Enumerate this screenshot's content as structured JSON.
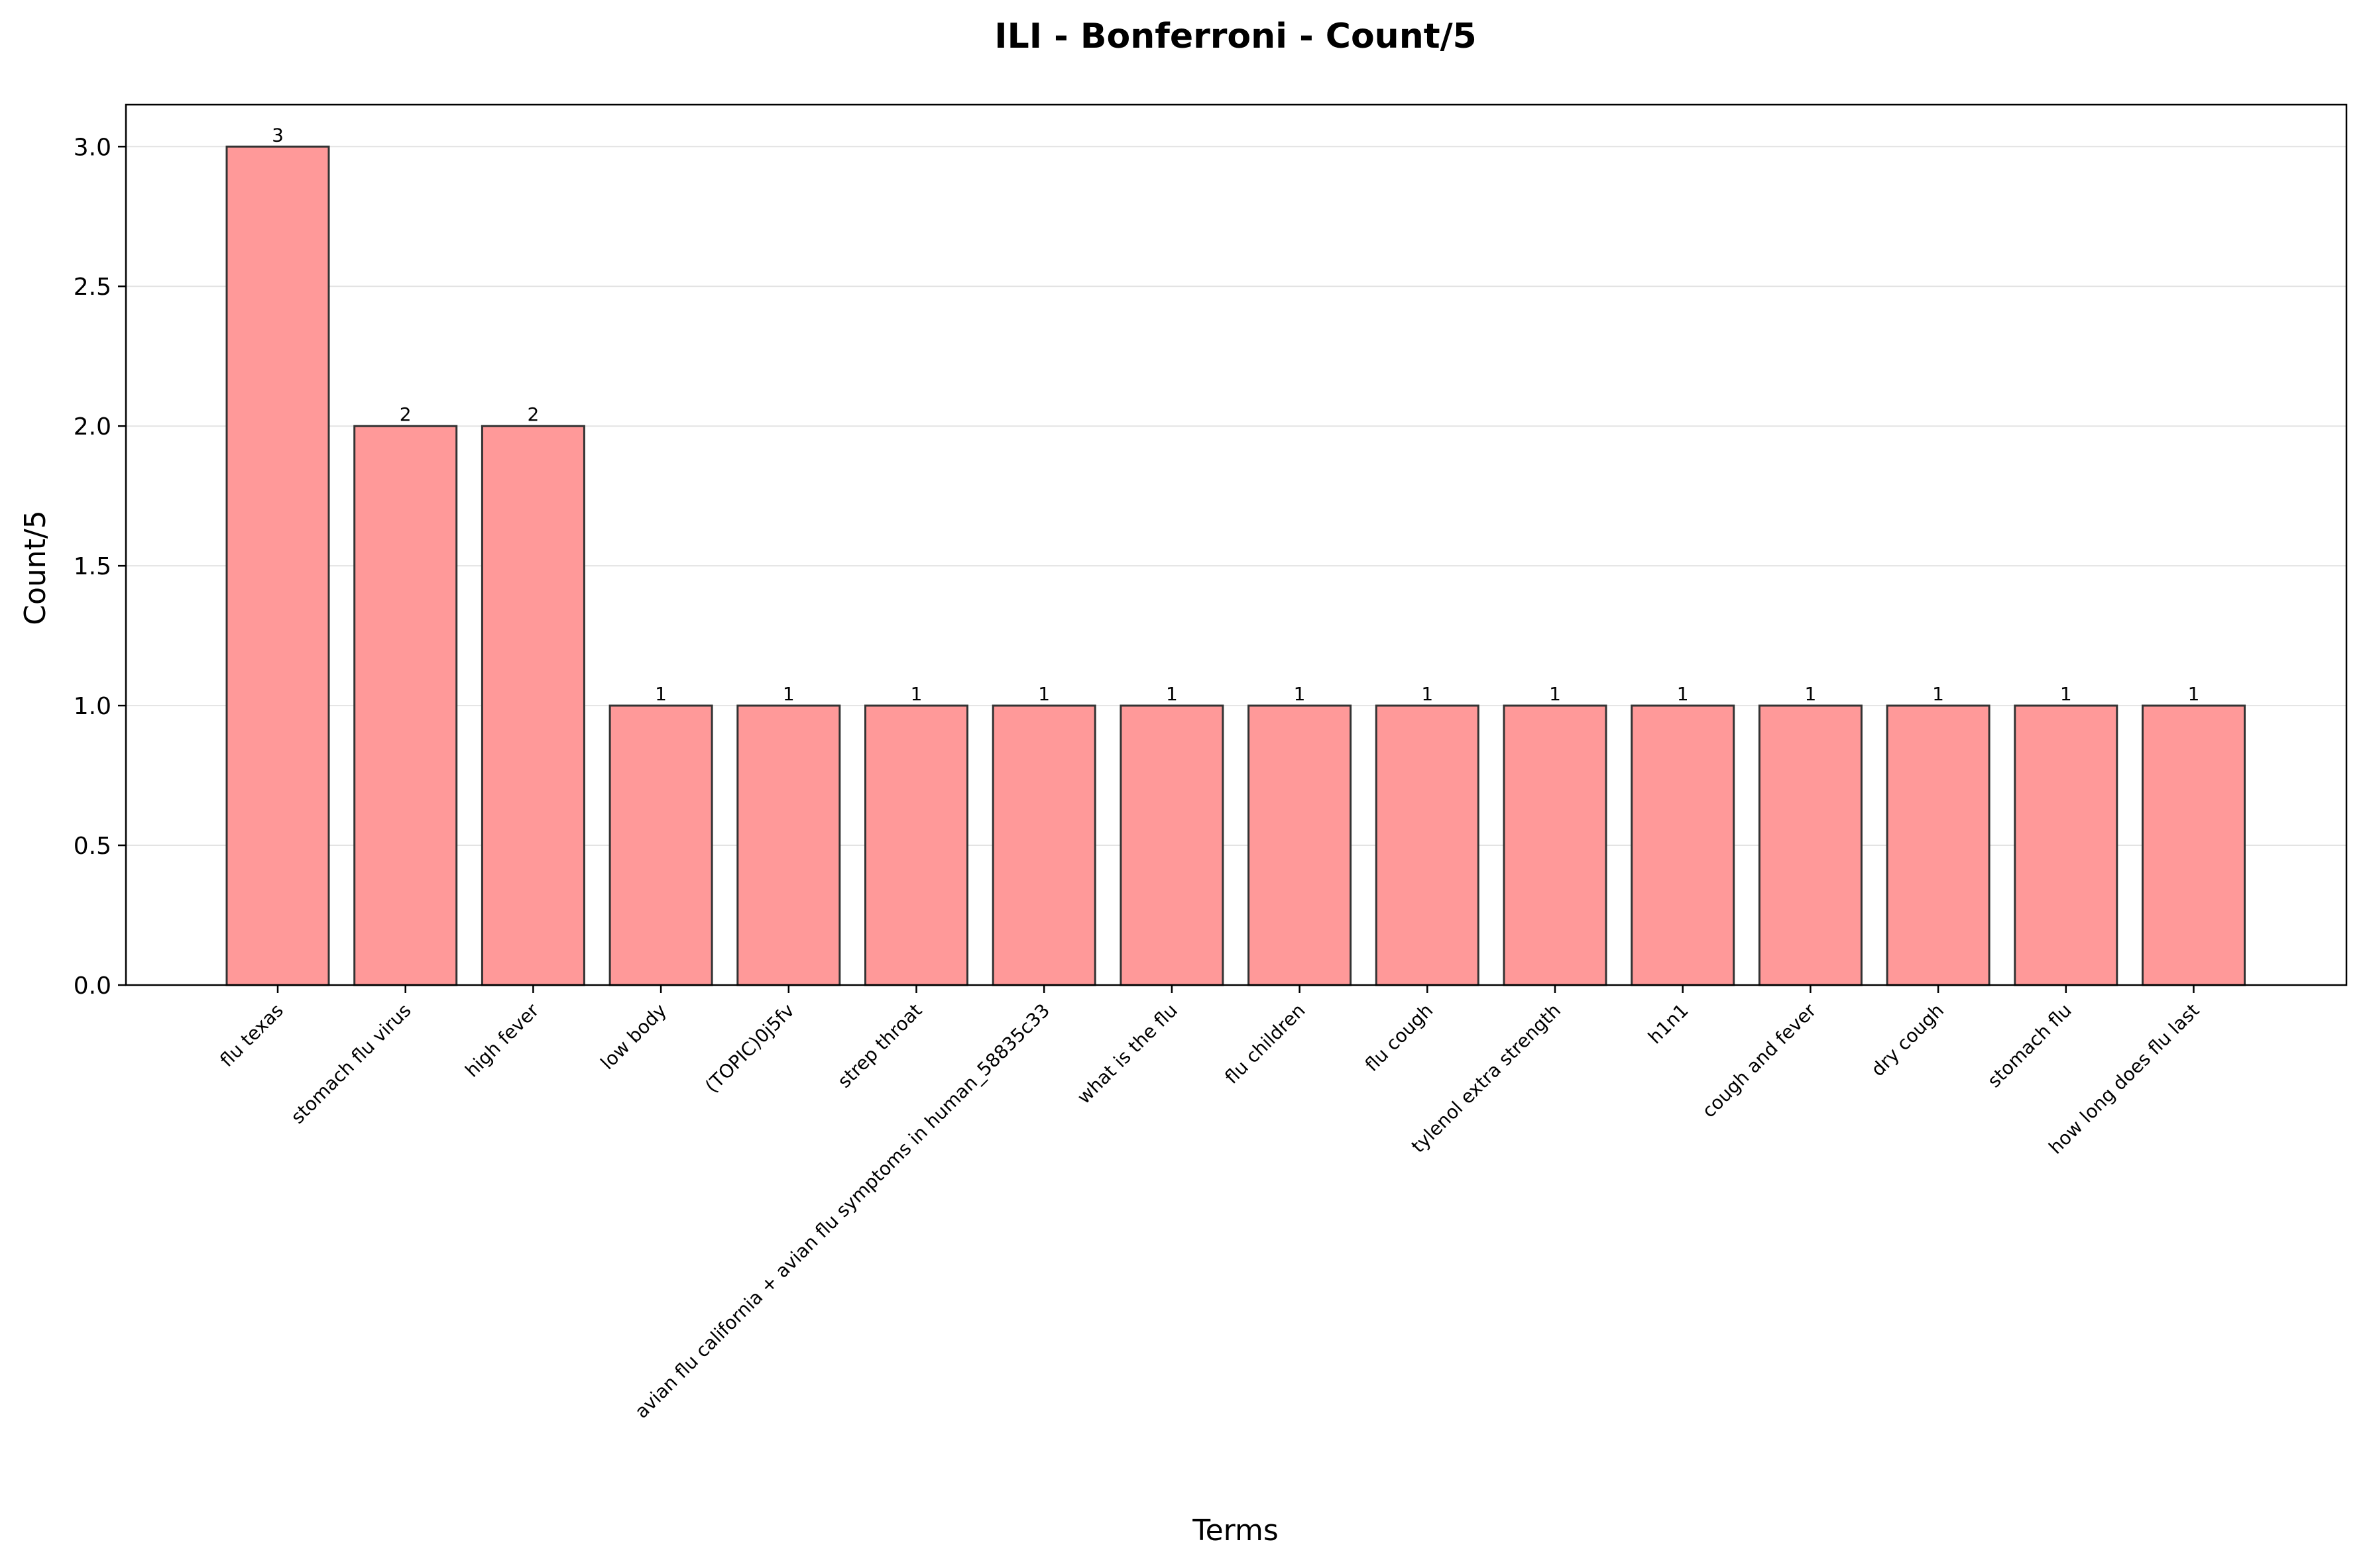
{
  "chart_data": {
    "type": "bar",
    "title": "ILI - Bonferroni - Count/5",
    "xlabel": "Terms",
    "ylabel": "Count/5",
    "ylim": [
      0,
      3.15
    ],
    "yticks": [
      "0.0",
      "0.5",
      "1.0",
      "1.5",
      "2.0",
      "2.5",
      "3.0"
    ],
    "grid": "horizontal",
    "bar_color": "#ff9999",
    "bar_edge_color": "#333333",
    "categories": [
      "flu texas",
      "stomach flu virus",
      "high fever",
      "low body",
      "(TOPIC)0j5fv",
      "strep throat",
      "avian flu california + avian flu symptoms in human_58835c33",
      "what is the flu",
      "flu children",
      "flu cough",
      "tylenol extra strength",
      "h1n1",
      "cough and fever",
      "dry cough",
      "stomach flu",
      "how long does flu last"
    ],
    "values": [
      3,
      2,
      2,
      1,
      1,
      1,
      1,
      1,
      1,
      1,
      1,
      1,
      1,
      1,
      1,
      1
    ],
    "data_labels": [
      "3",
      "2",
      "2",
      "1",
      "1",
      "1",
      "1",
      "1",
      "1",
      "1",
      "1",
      "1",
      "1",
      "1",
      "1",
      "1"
    ]
  }
}
